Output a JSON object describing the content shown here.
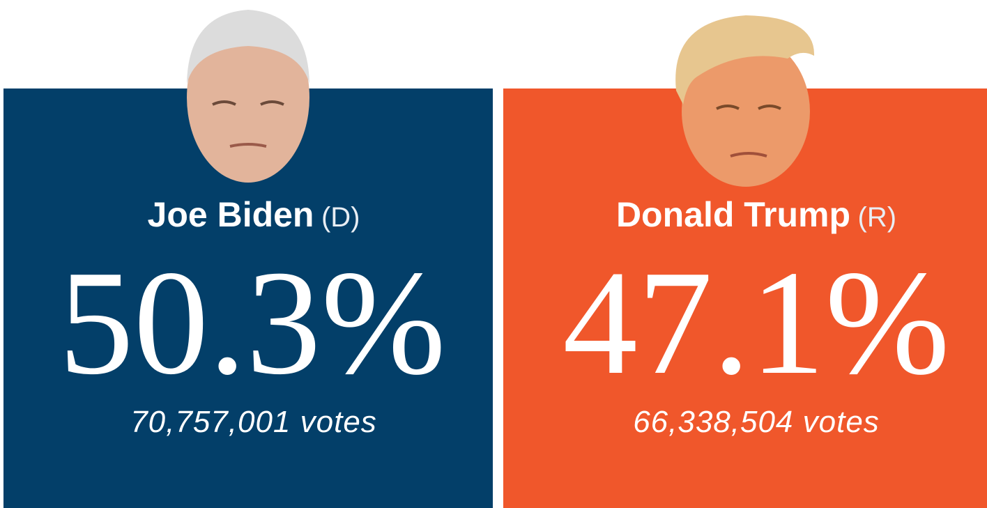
{
  "candidates": [
    {
      "name": "Joe Biden",
      "party": "(D)",
      "percent": "50.3%",
      "votes": "70,757,001 votes"
    },
    {
      "name": "Donald Trump",
      "party": "(R)",
      "percent": "47.1%",
      "votes": "66,338,504 votes"
    }
  ]
}
